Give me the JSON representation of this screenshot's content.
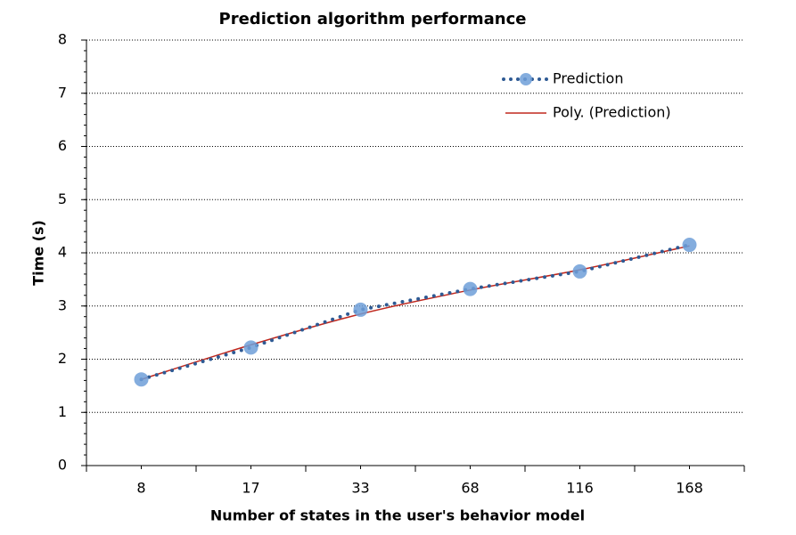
{
  "chart_data": {
    "type": "line",
    "title": "Prediction algorithm performance",
    "x_label": "Number of states in the user's behavior model",
    "y_label": "Time (s)",
    "categories": [
      "8",
      "17",
      "33",
      "68",
      "116",
      "168"
    ],
    "series": [
      {
        "name": "Prediction",
        "color": "#2e5a94",
        "marker_color": "#6f9fd8",
        "values": [
          1.62,
          2.22,
          2.93,
          3.32,
          3.65,
          4.15
        ]
      },
      {
        "name": "Poly. (Prediction)",
        "color": "#c0281e",
        "values": [
          1.62,
          2.27,
          2.85,
          3.3,
          3.68,
          4.13
        ]
      }
    ],
    "ylim": [
      0,
      8
    ],
    "yticks": [
      0,
      1,
      2,
      3,
      4,
      5,
      6,
      7,
      8
    ],
    "grid": true,
    "legend": "upper right"
  }
}
